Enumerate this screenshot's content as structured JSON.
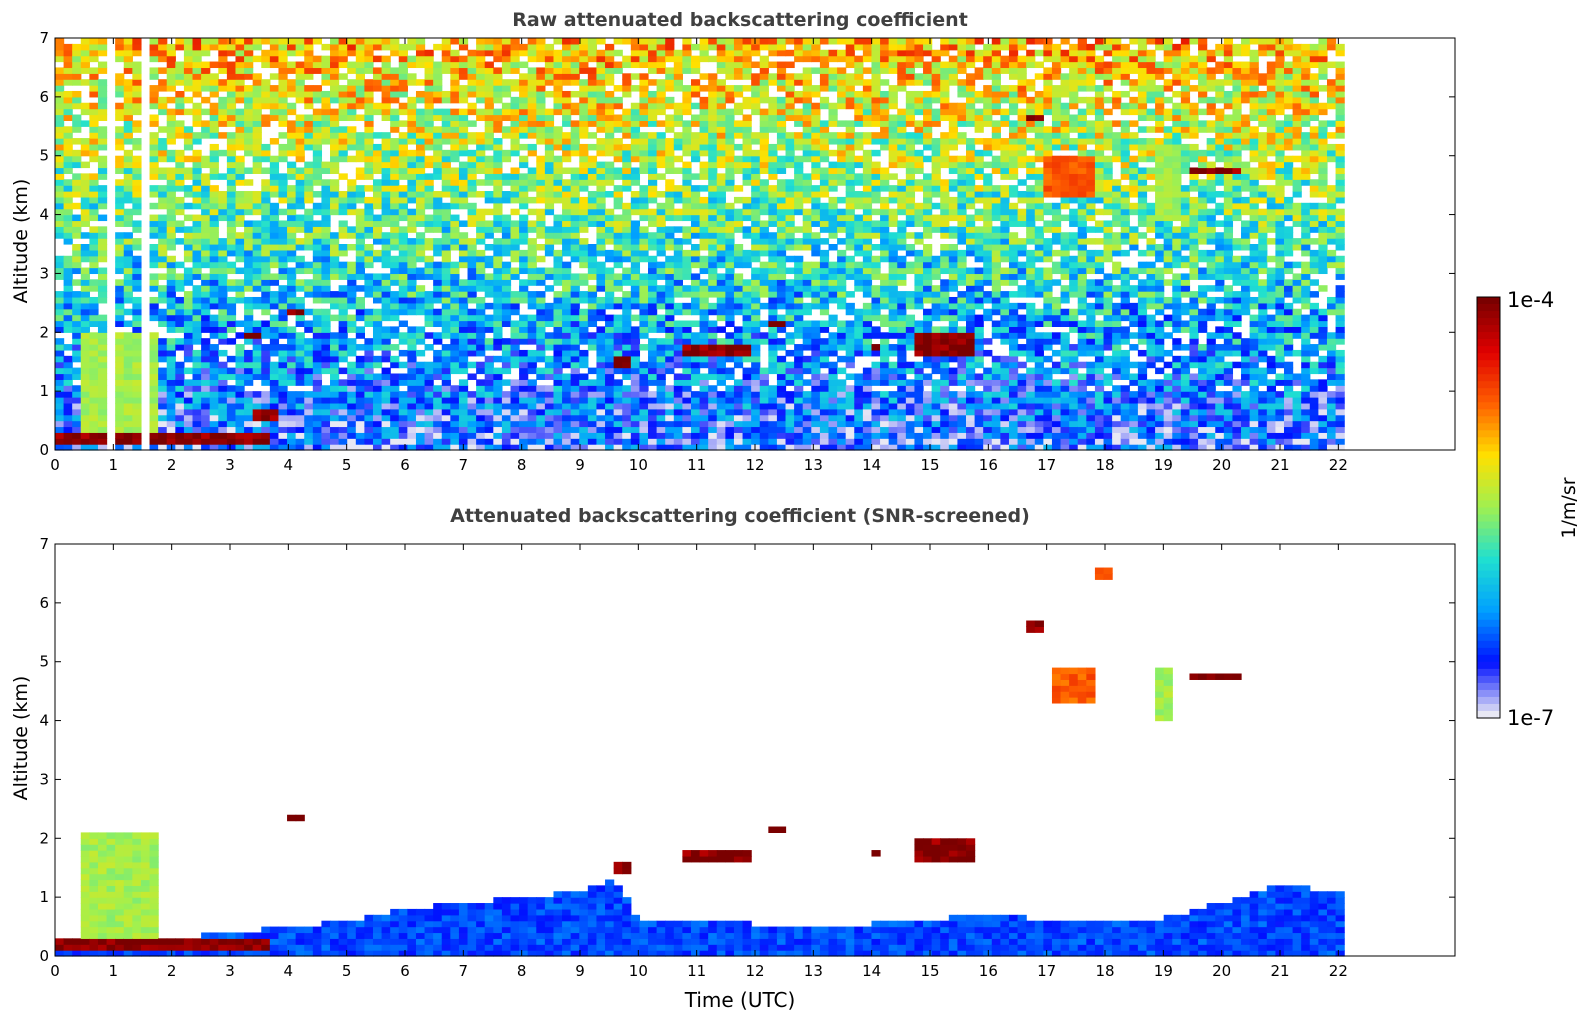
{
  "chart_data": [
    {
      "type": "heatmap",
      "title": "Raw attenuated backscattering coefficient",
      "xlabel": "",
      "ylabel": "Altitude (km)",
      "xlim": [
        0,
        24
      ],
      "ylim": [
        0,
        7
      ],
      "x_ticks": [
        "0",
        "1",
        "2",
        "3",
        "4",
        "5",
        "6",
        "7",
        "8",
        "9",
        "10",
        "11",
        "12",
        "13",
        "14",
        "15",
        "16",
        "17",
        "18",
        "19",
        "20",
        "21",
        "22"
      ],
      "y_ticks": [
        "0",
        "1",
        "2",
        "3",
        "4",
        "5",
        "6",
        "7"
      ],
      "data_end_hour": 22.1,
      "log_scale_color": true,
      "gaps_hours": [
        [
          0.88,
          0.98
        ],
        [
          1.45,
          1.57
        ]
      ],
      "layers": [
        {
          "desc": "near-surface aerosol layer",
          "x": [
            0.0,
            3.7
          ],
          "y": [
            0.1,
            0.3
          ],
          "level": "max"
        },
        {
          "desc": "low convective plumes",
          "x": [
            0.5,
            1.8
          ],
          "y": [
            0.3,
            2.0
          ],
          "level": "mid"
        },
        {
          "desc": "cloud",
          "x": [
            3.4,
            3.8
          ],
          "y": [
            0.55,
            0.65
          ],
          "level": "max"
        },
        {
          "desc": "cloud",
          "x": [
            4.0,
            4.3
          ],
          "y": [
            2.3,
            2.4
          ],
          "level": "max"
        },
        {
          "desc": "cloud",
          "x": [
            3.3,
            3.5
          ],
          "y": [
            1.9,
            2.0
          ],
          "level": "max"
        },
        {
          "desc": "cloud",
          "x": [
            9.6,
            9.9
          ],
          "y": [
            1.45,
            1.55
          ],
          "level": "max"
        },
        {
          "desc": "cloud",
          "x": [
            10.7,
            11.9
          ],
          "y": [
            1.65,
            1.8
          ],
          "level": "max"
        },
        {
          "desc": "cloud",
          "x": [
            12.2,
            12.5
          ],
          "y": [
            2.1,
            2.2
          ],
          "level": "max"
        },
        {
          "desc": "cloud",
          "x": [
            14.0,
            14.2
          ],
          "y": [
            1.7,
            1.8
          ],
          "level": "max"
        },
        {
          "desc": "cloud",
          "x": [
            14.8,
            15.8
          ],
          "y": [
            1.65,
            2.0
          ],
          "level": "max"
        },
        {
          "desc": "cloud",
          "x": [
            16.7,
            16.9
          ],
          "y": [
            5.6,
            5.7
          ],
          "level": "max"
        },
        {
          "desc": "cloud",
          "x": [
            17.8,
            18.1
          ],
          "y": [
            6.4,
            6.6
          ],
          "level": "high"
        },
        {
          "desc": "virga",
          "x": [
            17.0,
            17.9
          ],
          "y": [
            4.3,
            5.0
          ],
          "level": "high"
        },
        {
          "desc": "virga",
          "x": [
            18.8,
            19.3
          ],
          "y": [
            3.9,
            5.2
          ],
          "level": "mid"
        },
        {
          "desc": "cloud",
          "x": [
            19.5,
            20.4
          ],
          "y": [
            4.7,
            4.8
          ],
          "level": "max"
        }
      ]
    },
    {
      "type": "heatmap",
      "title": "Attenuated backscattering coefficient (SNR-screened)",
      "xlabel": "Time (UTC)",
      "ylabel": "Altitude (km)",
      "xlim": [
        0,
        24
      ],
      "ylim": [
        0,
        7
      ],
      "x_ticks": [
        "0",
        "1",
        "2",
        "3",
        "4",
        "5",
        "6",
        "7",
        "8",
        "9",
        "10",
        "11",
        "12",
        "13",
        "14",
        "15",
        "16",
        "17",
        "18",
        "19",
        "20",
        "21",
        "22"
      ],
      "y_ticks": [
        "0",
        "1",
        "2",
        "3",
        "4",
        "5",
        "6",
        "7"
      ],
      "data_end_hour": 22.1,
      "boundary_layer_top_km": [
        [
          0,
          0.3
        ],
        [
          2,
          0.3
        ],
        [
          3.5,
          0.45
        ],
        [
          4,
          0.5
        ],
        [
          5,
          0.6
        ],
        [
          6,
          0.8
        ],
        [
          7,
          0.9
        ],
        [
          8,
          1.0
        ],
        [
          9,
          1.1
        ],
        [
          9.6,
          1.3
        ],
        [
          10,
          0.6
        ],
        [
          11,
          0.55
        ],
        [
          12,
          0.55
        ],
        [
          13,
          0.5
        ],
        [
          14,
          0.55
        ],
        [
          15,
          0.6
        ],
        [
          16,
          0.75
        ],
        [
          17,
          0.6
        ],
        [
          18,
          0.6
        ],
        [
          19,
          0.65
        ],
        [
          20,
          0.9
        ],
        [
          21,
          1.2
        ],
        [
          22.1,
          1.1
        ]
      ],
      "layers": [
        {
          "desc": "near-surface aerosol layer",
          "x": [
            0.0,
            3.7
          ],
          "y": [
            0.1,
            0.3
          ],
          "level": "max"
        },
        {
          "desc": "low convective plumes",
          "x": [
            0.5,
            1.8
          ],
          "y": [
            0.3,
            2.1
          ],
          "level": "mid"
        },
        {
          "desc": "cloud",
          "x": [
            4.0,
            4.3
          ],
          "y": [
            2.3,
            2.4
          ],
          "level": "max"
        },
        {
          "desc": "cloud",
          "x": [
            9.6,
            9.9
          ],
          "y": [
            1.45,
            1.55
          ],
          "level": "max"
        },
        {
          "desc": "cloud",
          "x": [
            10.7,
            11.9
          ],
          "y": [
            1.65,
            1.8
          ],
          "level": "max"
        },
        {
          "desc": "cloud",
          "x": [
            12.2,
            12.5
          ],
          "y": [
            2.1,
            2.2
          ],
          "level": "max"
        },
        {
          "desc": "cloud",
          "x": [
            14.0,
            14.2
          ],
          "y": [
            1.7,
            1.8
          ],
          "level": "max"
        },
        {
          "desc": "cloud",
          "x": [
            14.8,
            15.8
          ],
          "y": [
            1.65,
            2.0
          ],
          "level": "max"
        },
        {
          "desc": "cloud",
          "x": [
            16.6,
            16.9
          ],
          "y": [
            5.55,
            5.7
          ],
          "level": "max"
        },
        {
          "desc": "cloud",
          "x": [
            17.8,
            18.1
          ],
          "y": [
            6.4,
            6.6
          ],
          "level": "high"
        },
        {
          "desc": "virga",
          "x": [
            17.1,
            17.9
          ],
          "y": [
            4.3,
            4.9
          ],
          "level": "high"
        },
        {
          "desc": "virga",
          "x": [
            18.8,
            19.2
          ],
          "y": [
            4.0,
            4.9
          ],
          "level": "mid"
        },
        {
          "desc": "cloud",
          "x": [
            19.5,
            20.4
          ],
          "y": [
            4.7,
            4.8
          ],
          "level": "max"
        }
      ]
    }
  ],
  "colorbar": {
    "max_label": "1e-4",
    "min_label": "1e-7",
    "unit_label": "1/m/sr",
    "colors": [
      "#e8e8f4",
      "#0010ff",
      "#00a0ff",
      "#20e0d0",
      "#a0f050",
      "#ffe000",
      "#ff6000",
      "#e00000",
      "#7a0000"
    ]
  },
  "style": {
    "title_color": "#404040",
    "axis_color": "#000000"
  }
}
